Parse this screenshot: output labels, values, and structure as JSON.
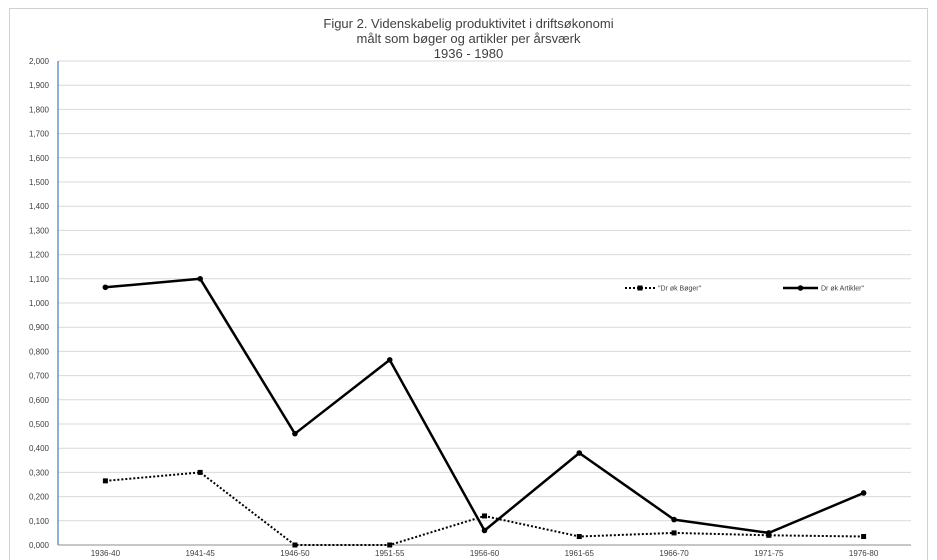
{
  "chart_data": {
    "type": "line",
    "title_lines": [
      "Figur 2. Videnskabelig produktivitet i driftsøkonomi",
      "målt som bøger og artikler per årsværk",
      "1936 - 1980"
    ],
    "categories": [
      "1936-40",
      "1941-45",
      "1946-50",
      "1951-55",
      "1956-60",
      "1961-65",
      "1966-70",
      "1971-75",
      "1976-80"
    ],
    "y_ticks": [
      "0,000",
      "0,100",
      "0,200",
      "0,300",
      "0,400",
      "0,500",
      "0,600",
      "0,700",
      "0,800",
      "0,900",
      "1,000",
      "1,100",
      "1,200",
      "1,300",
      "1,400",
      "1,500",
      "1,600",
      "1,700",
      "1,800",
      "1,900",
      "2,000"
    ],
    "ylim": [
      0,
      2
    ],
    "grid": true,
    "legend_position": "right",
    "series": [
      {
        "name": "\"Dr øk Bøger\"",
        "style": "dotted",
        "marker": "square",
        "color": "#000000",
        "values": [
          0.265,
          0.3,
          0.0,
          0.0,
          0.12,
          0.035,
          0.05,
          0.04,
          0.035
        ]
      },
      {
        "name": "Dr øk Artikler\"",
        "style": "solid",
        "marker": "circle",
        "color": "#000000",
        "values": [
          1.065,
          1.1,
          0.46,
          0.765,
          0.06,
          0.38,
          0.105,
          0.05,
          0.215
        ]
      }
    ]
  }
}
